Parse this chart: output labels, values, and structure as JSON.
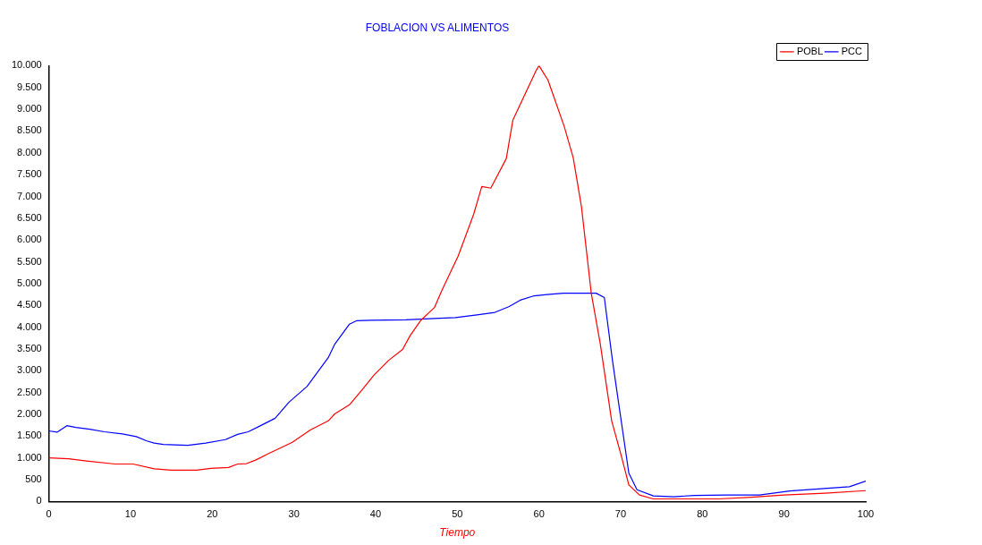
{
  "chart_data": {
    "type": "line",
    "title": "FOBLACION VS ALIMENTOS",
    "xlabel": "Tiempo",
    "xlim": [
      0,
      100
    ],
    "xticks": [
      0,
      10,
      20,
      30,
      40,
      50,
      60,
      70,
      80,
      90,
      100
    ],
    "ylim": [
      0,
      10000
    ],
    "yticks": [
      0,
      500,
      {
        "value": 1000,
        "label": "1.000"
      },
      {
        "value": 1500,
        "label": "1.500"
      },
      {
        "value": 2000,
        "label": "2.000"
      },
      {
        "value": 2500,
        "label": "2.500"
      },
      {
        "value": 3000,
        "label": "3.000"
      },
      {
        "value": 3500,
        "label": "3.500"
      },
      {
        "value": 4000,
        "label": "4.000"
      },
      {
        "value": 4500,
        "label": "4.500"
      },
      {
        "value": 5000,
        "label": "5.000"
      },
      {
        "value": 5500,
        "label": "5.500"
      },
      {
        "value": 6000,
        "label": "6.000"
      },
      {
        "value": 6500,
        "label": "6.500"
      },
      {
        "value": 7000,
        "label": "7.000"
      },
      {
        "value": 7500,
        "label": "7.500"
      },
      {
        "value": 8000,
        "label": "8.000"
      },
      {
        "value": 8500,
        "label": "8.500"
      },
      {
        "value": 9000,
        "label": "9.000"
      },
      {
        "value": 9500,
        "label": "9.500"
      },
      {
        "value": 10000,
        "label": "10.000"
      }
    ],
    "grid": false,
    "legend": "top right",
    "marker": "none",
    "line_style": "solid",
    "series": [
      {
        "name": "POBL",
        "color": "#ff0000",
        "x": [
          0,
          2.4,
          4.6,
          8.1,
          10.3,
          12.9,
          15,
          18.1,
          19.8,
          22,
          23.1,
          24.2,
          25.3,
          26.8,
          29.8,
          32,
          34.2,
          35,
          36.8,
          38.5,
          39.8,
          41.6,
          43.3,
          44.2,
          45.5,
          47.2,
          48.1,
          50.1,
          52,
          53,
          54.1,
          56,
          56.8,
          59.6,
          60,
          61.1,
          63.1,
          64.2,
          65.2,
          66.4,
          67.5,
          68.9,
          70,
          71,
          72.3,
          74,
          76,
          82,
          86,
          90,
          95,
          100
        ],
        "values": [
          1000,
          980,
          930,
          860,
          860,
          750,
          720,
          720,
          760,
          780,
          860,
          870,
          950,
          1090,
          1360,
          1640,
          1850,
          2010,
          2220,
          2600,
          2900,
          3240,
          3490,
          3800,
          4150,
          4450,
          4840,
          5630,
          6590,
          7230,
          7190,
          7870,
          8750,
          9870,
          10000,
          9670,
          8600,
          7880,
          6760,
          4780,
          3620,
          1850,
          1100,
          380,
          150,
          60,
          60,
          60,
          100,
          150,
          190,
          250
        ]
      },
      {
        "name": "PCC",
        "color": "#0000ff",
        "x": [
          0,
          1,
          2.2,
          3.3,
          5,
          6.8,
          9,
          10.7,
          12,
          12.9,
          14,
          17,
          19.2,
          21.6,
          23.1,
          24.4,
          25.7,
          27.7,
          29.4,
          31.6,
          34.2,
          35,
          36.8,
          37.7,
          39.4,
          43.7,
          47.2,
          49.8,
          52.4,
          54.6,
          56.3,
          57.7,
          59.4,
          61,
          63,
          67,
          68,
          69,
          69.7,
          71,
          72,
          74,
          76.5,
          79,
          83,
          87,
          90.7,
          98,
          100
        ],
        "values": [
          1620,
          1590,
          1740,
          1700,
          1660,
          1600,
          1550,
          1490,
          1390,
          1340,
          1310,
          1290,
          1340,
          1420,
          1540,
          1600,
          1720,
          1910,
          2280,
          2640,
          3300,
          3610,
          4070,
          4150,
          4160,
          4170,
          4200,
          4220,
          4280,
          4340,
          4470,
          4620,
          4720,
          4750,
          4780,
          4780,
          4680,
          3230,
          2320,
          650,
          270,
          130,
          110,
          140,
          150,
          150,
          240,
          340,
          470
        ]
      }
    ]
  }
}
